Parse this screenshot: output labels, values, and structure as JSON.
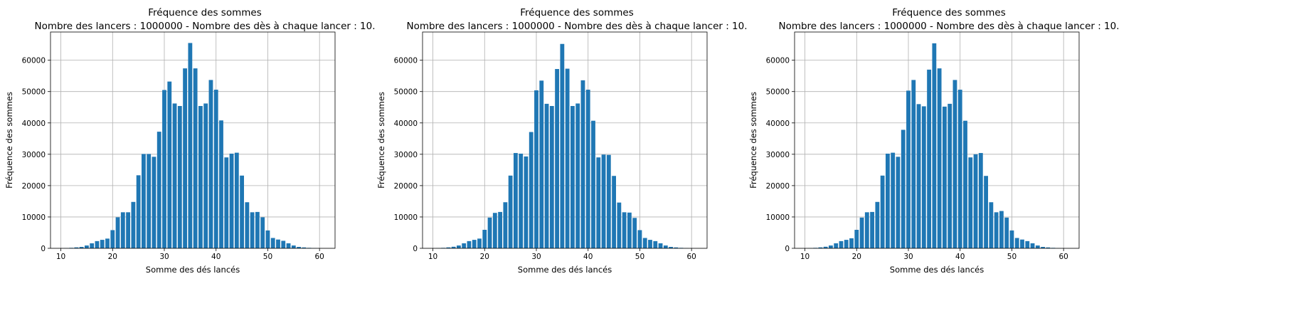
{
  "chart_data": [
    {
      "type": "bar",
      "title": "Fréquence des sommes",
      "subtitle": "Nombre des lancers : 1000000 - Nombre des dès à chaque lancer : 10.",
      "xlabel": "Somme des dés lancés",
      "ylabel": "Fréquence des sommes",
      "xlim": [
        8,
        63
      ],
      "ylim": [
        0,
        69000
      ],
      "x_ticks": [
        10,
        20,
        30,
        40,
        50,
        60
      ],
      "y_ticks": [
        0,
        10000,
        20000,
        30000,
        40000,
        50000,
        60000
      ],
      "grid": true,
      "bar_color": "#1f77b4",
      "x": [
        10,
        11,
        12,
        13,
        14,
        15,
        16,
        17,
        18,
        19,
        20,
        21,
        22,
        23,
        24,
        25,
        26,
        27,
        28,
        29,
        30,
        31,
        32,
        33,
        34,
        35,
        36,
        37,
        38,
        39,
        40,
        41,
        42,
        43,
        44,
        45,
        46,
        47,
        48,
        49,
        50,
        51,
        52,
        53,
        54,
        55,
        56,
        57,
        58,
        59,
        60
      ],
      "values": [
        20,
        60,
        150,
        300,
        450,
        900,
        1600,
        2300,
        2700,
        3100,
        5800,
        9900,
        11500,
        11500,
        14800,
        23300,
        30100,
        30100,
        29200,
        37200,
        50500,
        53200,
        46200,
        45400,
        57400,
        65500,
        57400,
        45400,
        46200,
        53700,
        50600,
        40800,
        29000,
        30200,
        30500,
        23200,
        14700,
        11500,
        11600,
        9900,
        5700,
        3300,
        2800,
        2400,
        1600,
        900,
        450,
        280,
        150,
        60,
        20
      ]
    },
    {
      "type": "bar",
      "title": "Fréquence des sommes",
      "subtitle": "Nombre des lancers : 1000000 - Nombre des dès à chaque lancer : 10.",
      "xlabel": "Somme des dés lancés",
      "ylabel": "Fréquence des sommes",
      "xlim": [
        8,
        63
      ],
      "ylim": [
        0,
        69000
      ],
      "x_ticks": [
        10,
        20,
        30,
        40,
        50,
        60
      ],
      "y_ticks": [
        0,
        10000,
        20000,
        30000,
        40000,
        50000,
        60000
      ],
      "grid": true,
      "bar_color": "#1f77b4",
      "x": [
        10,
        11,
        12,
        13,
        14,
        15,
        16,
        17,
        18,
        19,
        20,
        21,
        22,
        23,
        24,
        25,
        26,
        27,
        28,
        29,
        30,
        31,
        32,
        33,
        34,
        35,
        36,
        37,
        38,
        39,
        40,
        41,
        42,
        43,
        44,
        45,
        46,
        47,
        48,
        49,
        50,
        51,
        52,
        53,
        54,
        55,
        56,
        57,
        58,
        59,
        60
      ],
      "values": [
        20,
        60,
        150,
        300,
        500,
        900,
        1600,
        2300,
        2700,
        3100,
        5900,
        9800,
        11300,
        11600,
        14700,
        23200,
        30400,
        30200,
        29300,
        37100,
        50400,
        53500,
        46100,
        45400,
        57200,
        65200,
        57300,
        45400,
        46200,
        53600,
        50600,
        40700,
        29000,
        29900,
        29800,
        23100,
        14600,
        11500,
        11400,
        9700,
        5800,
        3300,
        2700,
        2300,
        1600,
        900,
        450,
        280,
        150,
        60,
        20
      ]
    },
    {
      "type": "bar",
      "title": "Fréquence des sommes",
      "subtitle": "Nombre des lancers : 1000000 - Nombre des dès à chaque lancer : 10.",
      "xlabel": "Somme des dés lancés",
      "ylabel": "Fréquence des sommes",
      "xlim": [
        8,
        63
      ],
      "ylim": [
        0,
        69000
      ],
      "x_ticks": [
        10,
        20,
        30,
        40,
        50,
        60
      ],
      "y_ticks": [
        0,
        10000,
        20000,
        30000,
        40000,
        50000,
        60000
      ],
      "grid": true,
      "bar_color": "#1f77b4",
      "x": [
        10,
        11,
        12,
        13,
        14,
        15,
        16,
        17,
        18,
        19,
        20,
        21,
        22,
        23,
        24,
        25,
        26,
        27,
        28,
        29,
        30,
        31,
        32,
        33,
        34,
        35,
        36,
        37,
        38,
        39,
        40,
        41,
        42,
        43,
        44,
        45,
        46,
        47,
        48,
        49,
        50,
        51,
        52,
        53,
        54,
        55,
        56,
        57,
        58,
        59,
        60
      ],
      "values": [
        20,
        60,
        150,
        300,
        500,
        900,
        1600,
        2300,
        2700,
        3200,
        5900,
        9800,
        11500,
        11600,
        14800,
        23200,
        30200,
        30500,
        29200,
        37800,
        50300,
        53700,
        46000,
        45300,
        57000,
        65400,
        57400,
        45200,
        46100,
        53700,
        50600,
        40700,
        29000,
        30000,
        30400,
        23100,
        14700,
        11500,
        11900,
        9800,
        5700,
        3300,
        2800,
        2300,
        1600,
        900,
        450,
        280,
        150,
        60,
        20
      ]
    }
  ]
}
